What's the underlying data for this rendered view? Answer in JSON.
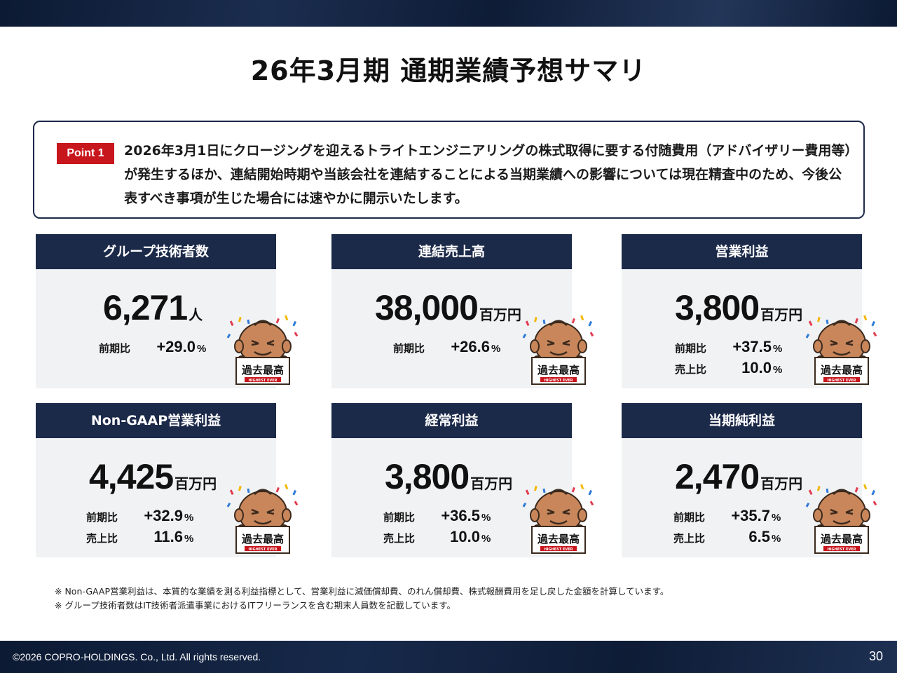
{
  "title": "26年3月期 通期業績予想サマリ",
  "point": {
    "badge": "Point 1",
    "text": "2026年3月1日にクロージングを迎えるトライトエンジニアリングの株式取得に要する付随費用（アドバイザリー費用等）が発生するほか、連結開始時期や当該会社を連結することによる当期業績への影響については現在精査中のため、今後公表すべき事項が生じた場合には速やかに開示いたします。"
  },
  "cards": [
    {
      "title": "グループ技術者数",
      "value": "6,271",
      "unit": "人",
      "yoy_label": "前期比",
      "yoy": "+29.0",
      "pct": "%"
    },
    {
      "title": "連結売上高",
      "value": "38,000",
      "unit": "百万円",
      "yoy_label": "前期比",
      "yoy": "+26.6",
      "pct": "%"
    },
    {
      "title": "営業利益",
      "value": "3,800",
      "unit": "百万円",
      "yoy_label": "前期比",
      "yoy": "+37.5",
      "pct": "%",
      "ratio_label": "売上比",
      "ratio": "10.0"
    },
    {
      "title": "Non-GAAP営業利益",
      "value": "4,425",
      "unit": "百万円",
      "yoy_label": "前期比",
      "yoy": "+32.9",
      "pct": "%",
      "ratio_label": "売上比",
      "ratio": "11.6"
    },
    {
      "title": "経常利益",
      "value": "3,800",
      "unit": "百万円",
      "yoy_label": "前期比",
      "yoy": "+36.5",
      "pct": "%",
      "ratio_label": "売上比",
      "ratio": "10.0"
    },
    {
      "title": "当期純利益",
      "value": "2,470",
      "unit": "百万円",
      "yoy_label": "前期比",
      "yoy": "+35.7",
      "pct": "%",
      "ratio_label": "売上比",
      "ratio": "6.5"
    }
  ],
  "mascot": {
    "sign": "過去最高",
    "sub": "HIGHEST EVER"
  },
  "notes": [
    "※ Non-GAAP営業利益は、本質的な業績を測る利益指標として、営業利益に減価償却費、のれん償却費、株式報酬費用を足し戻した金額を計算しています。",
    "※ グループ技術者数はIT技術者派遣事業におけるITフリーランスを含む期末人員数を記載しています。"
  ],
  "footer": {
    "copyright": "©2026 COPRO-HOLDINGS. Co., Ltd. All rights reserved.",
    "page": "30"
  },
  "colors": {
    "navy": "#1c2a4a",
    "red": "#c8161d",
    "card_bg": "#f1f2f4"
  }
}
